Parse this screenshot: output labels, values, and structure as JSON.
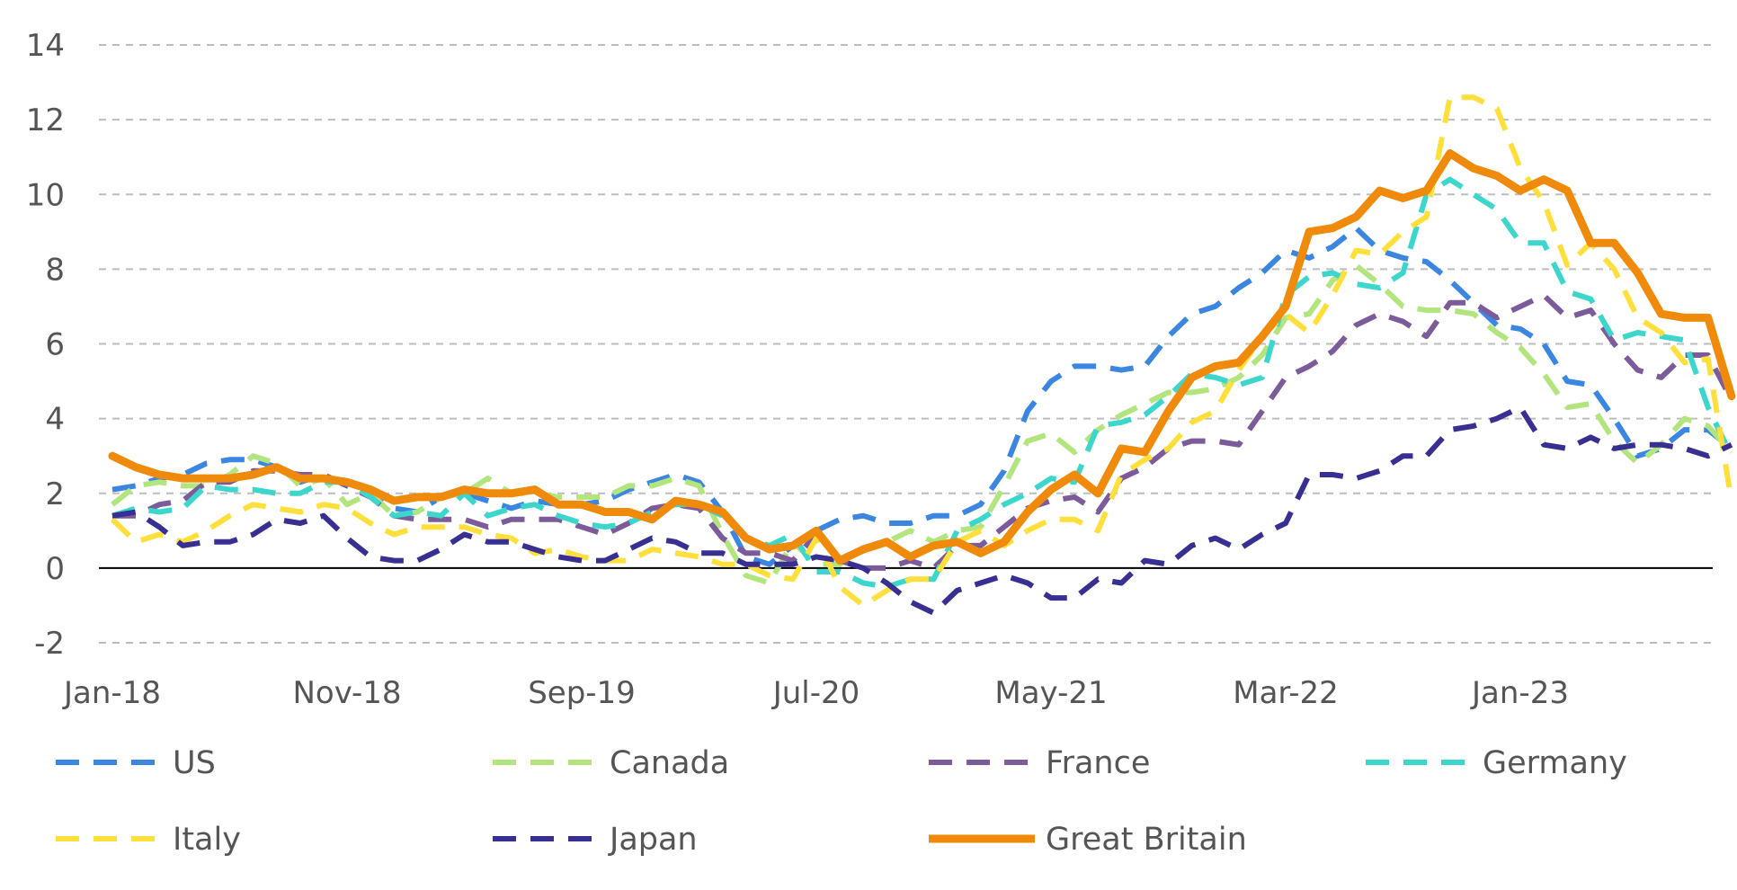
{
  "chart_data": {
    "type": "line",
    "title": "",
    "xlabel": "",
    "ylabel": "",
    "ylim": [
      -2,
      14
    ],
    "y_ticks": [
      "-2",
      "0",
      "2",
      "4",
      "6",
      "8",
      "10",
      "12",
      "14"
    ],
    "x_ticks": [
      "Jan-18",
      "Nov-18",
      "Sep-19",
      "Jul-20",
      "May-21",
      "Mar-22",
      "Jan-23"
    ],
    "grid": "horizontal dashed",
    "legend_position": "bottom",
    "x": [
      "2018-01",
      "2018-02",
      "2018-03",
      "2018-04",
      "2018-05",
      "2018-06",
      "2018-07",
      "2018-08",
      "2018-09",
      "2018-10",
      "2018-11",
      "2018-12",
      "2019-01",
      "2019-02",
      "2019-03",
      "2019-04",
      "2019-05",
      "2019-06",
      "2019-07",
      "2019-08",
      "2019-09",
      "2019-10",
      "2019-11",
      "2019-12",
      "2020-01",
      "2020-02",
      "2020-03",
      "2020-04",
      "2020-05",
      "2020-06",
      "2020-07",
      "2020-08",
      "2020-09",
      "2020-10",
      "2020-11",
      "2020-12",
      "2021-01",
      "2021-02",
      "2021-03",
      "2021-04",
      "2021-05",
      "2021-06",
      "2021-07",
      "2021-08",
      "2021-09",
      "2021-10",
      "2021-11",
      "2021-12",
      "2022-01",
      "2022-02",
      "2022-03",
      "2022-04",
      "2022-05",
      "2022-06",
      "2022-07",
      "2022-08",
      "2022-09",
      "2022-10",
      "2022-11",
      "2022-12",
      "2023-01",
      "2023-02",
      "2023-03",
      "2023-04",
      "2023-05",
      "2023-06",
      "2023-07",
      "2023-08",
      "2023-09",
      "2023-10"
    ],
    "series": [
      {
        "name": "US",
        "color": "#3A86E0",
        "dash": "dashed",
        "values": [
          2.1,
          2.2,
          2.4,
          2.5,
          2.8,
          2.9,
          2.9,
          2.7,
          2.3,
          2.5,
          2.2,
          1.9,
          1.6,
          1.5,
          1.9,
          2.0,
          1.8,
          1.6,
          1.8,
          1.7,
          1.7,
          1.8,
          2.1,
          2.3,
          2.5,
          2.3,
          1.5,
          0.3,
          0.1,
          0.6,
          1.0,
          1.3,
          1.4,
          1.2,
          1.2,
          1.4,
          1.4,
          1.7,
          2.6,
          4.2,
          5.0,
          5.4,
          5.4,
          5.3,
          5.4,
          6.2,
          6.8,
          7.0,
          7.5,
          7.9,
          8.5,
          8.3,
          8.6,
          9.1,
          8.5,
          8.3,
          8.2,
          7.7,
          7.1,
          6.5,
          6.4,
          6.0,
          5.0,
          4.9,
          4.0,
          3.0,
          3.2,
          3.7,
          3.7,
          3.2
        ]
      },
      {
        "name": "Canada",
        "color": "#B3E57F",
        "dash": "dashed",
        "values": [
          1.7,
          2.2,
          2.3,
          2.2,
          2.2,
          2.5,
          3.0,
          2.8,
          2.2,
          2.4,
          1.7,
          2.0,
          1.4,
          1.5,
          1.9,
          2.0,
          2.4,
          2.0,
          2.0,
          1.9,
          1.9,
          1.9,
          2.2,
          2.2,
          2.4,
          2.2,
          0.9,
          -0.2,
          -0.4,
          0.7,
          0.1,
          0.1,
          0.5,
          0.7,
          1.0,
          0.7,
          1.0,
          1.1,
          2.2,
          3.4,
          3.6,
          3.1,
          3.7,
          4.1,
          4.4,
          4.7,
          4.7,
          4.8,
          5.1,
          5.7,
          6.7,
          6.8,
          7.7,
          8.1,
          7.6,
          7.0,
          6.9,
          6.9,
          6.8,
          6.3,
          5.9,
          5.2,
          4.3,
          4.4,
          3.4,
          2.8,
          3.3,
          4.0,
          3.8,
          3.1
        ]
      },
      {
        "name": "France",
        "color": "#7B5B9A",
        "dash": "dashed",
        "values": [
          1.4,
          1.4,
          1.7,
          1.8,
          2.3,
          2.3,
          2.6,
          2.6,
          2.5,
          2.5,
          2.2,
          1.9,
          1.4,
          1.3,
          1.3,
          1.3,
          1.1,
          1.3,
          1.3,
          1.3,
          1.1,
          0.9,
          1.2,
          1.6,
          1.7,
          1.6,
          0.8,
          0.4,
          0.4,
          0.2,
          0.9,
          0.2,
          0.0,
          0.0,
          0.2,
          0.0,
          0.6,
          0.6,
          1.1,
          1.6,
          1.8,
          1.9,
          1.5,
          2.4,
          2.7,
          3.2,
          3.4,
          3.4,
          3.3,
          4.2,
          5.1,
          5.4,
          5.8,
          6.5,
          6.8,
          6.6,
          6.2,
          7.1,
          7.1,
          6.7,
          7.0,
          7.3,
          6.7,
          6.9,
          6.0,
          5.3,
          5.1,
          5.7,
          5.7,
          4.5
        ]
      },
      {
        "name": "Germany",
        "color": "#3DD6CC",
        "dash": "dashed",
        "values": [
          1.4,
          1.6,
          1.5,
          1.6,
          2.2,
          2.1,
          2.1,
          2.0,
          2.0,
          2.3,
          2.3,
          1.9,
          1.4,
          1.5,
          1.4,
          2.0,
          1.4,
          1.6,
          1.7,
          1.4,
          1.2,
          1.1,
          1.2,
          1.5,
          1.7,
          1.7,
          1.4,
          0.8,
          0.6,
          0.9,
          -0.1,
          -0.1,
          -0.4,
          -0.5,
          -0.3,
          -0.3,
          1.0,
          1.3,
          1.7,
          2.0,
          2.4,
          2.3,
          3.8,
          3.9,
          4.1,
          4.6,
          5.2,
          5.1,
          4.9,
          5.1,
          7.3,
          7.8,
          7.9,
          7.6,
          7.5,
          7.9,
          10.0,
          10.4,
          10.0,
          9.6,
          8.7,
          8.7,
          7.4,
          7.2,
          6.1,
          6.3,
          6.2,
          6.1,
          4.3,
          3.0
        ]
      },
      {
        "name": "Italy",
        "color": "#FFDF3B",
        "dash": "dashed",
        "values": [
          1.3,
          0.7,
          0.9,
          0.7,
          1.0,
          1.4,
          1.7,
          1.6,
          1.5,
          1.7,
          1.6,
          1.2,
          0.9,
          1.1,
          1.1,
          1.1,
          0.9,
          0.8,
          0.4,
          0.5,
          0.3,
          0.2,
          0.2,
          0.5,
          0.4,
          0.3,
          0.1,
          0.1,
          -0.2,
          -0.3,
          0.8,
          -0.5,
          -1.0,
          -0.6,
          -0.3,
          -0.3,
          0.7,
          1.0,
          0.6,
          1.0,
          1.3,
          1.3,
          1.0,
          2.5,
          2.9,
          3.2,
          3.9,
          4.2,
          5.3,
          6.2,
          6.8,
          6.3,
          7.3,
          8.5,
          8.4,
          9.0,
          9.4,
          12.6,
          12.6,
          12.3,
          10.7,
          9.8,
          8.1,
          8.7,
          8.0,
          6.7,
          6.3,
          5.5,
          5.6,
          1.8
        ]
      },
      {
        "name": "Japan",
        "color": "#372F91",
        "dash": "dashed",
        "values": [
          1.4,
          1.5,
          1.1,
          0.6,
          0.7,
          0.7,
          0.9,
          1.3,
          1.2,
          1.4,
          0.8,
          0.3,
          0.2,
          0.2,
          0.5,
          0.9,
          0.7,
          0.7,
          0.5,
          0.3,
          0.2,
          0.2,
          0.5,
          0.8,
          0.7,
          0.4,
          0.4,
          0.1,
          0.1,
          0.1,
          0.3,
          0.2,
          0.0,
          -0.4,
          -0.9,
          -1.2,
          -0.6,
          -0.4,
          -0.2,
          -0.4,
          -0.8,
          -0.8,
          -0.3,
          -0.4,
          0.2,
          0.1,
          0.6,
          0.8,
          0.5,
          0.9,
          1.2,
          2.5,
          2.5,
          2.4,
          2.6,
          3.0,
          3.0,
          3.7,
          3.8,
          4.0,
          4.3,
          3.3,
          3.2,
          3.5,
          3.2,
          3.3,
          3.3,
          3.2,
          3.0,
          3.3
        ]
      },
      {
        "name": "Great Britain",
        "color": "#F08A0B",
        "dash": "solid",
        "values": [
          3.0,
          2.7,
          2.5,
          2.4,
          2.4,
          2.4,
          2.5,
          2.7,
          2.4,
          2.4,
          2.3,
          2.1,
          1.8,
          1.9,
          1.9,
          2.1,
          2.0,
          2.0,
          2.1,
          1.7,
          1.7,
          1.5,
          1.5,
          1.3,
          1.8,
          1.7,
          1.5,
          0.8,
          0.5,
          0.6,
          1.0,
          0.2,
          0.5,
          0.7,
          0.3,
          0.6,
          0.7,
          0.4,
          0.7,
          1.5,
          2.1,
          2.5,
          2.0,
          3.2,
          3.1,
          4.2,
          5.1,
          5.4,
          5.5,
          6.2,
          7.0,
          9.0,
          9.1,
          9.4,
          10.1,
          9.9,
          10.1,
          11.1,
          10.7,
          10.5,
          10.1,
          10.4,
          10.1,
          8.7,
          8.7,
          7.9,
          6.8,
          6.7,
          6.7,
          4.6
        ]
      }
    ]
  }
}
